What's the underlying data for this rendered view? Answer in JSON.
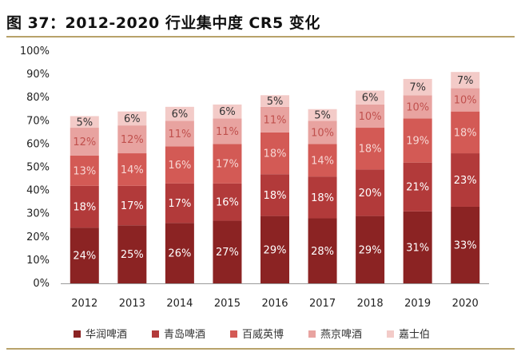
{
  "title": "图 37：2012-2020 行业集中度 CR5 变化",
  "chart_data": {
    "type": "bar",
    "stacked": true,
    "categories": [
      "2012",
      "2013",
      "2014",
      "2015",
      "2016",
      "2017",
      "2018",
      "2019",
      "2020"
    ],
    "y_ticks": [
      "0%",
      "10%",
      "20%",
      "30%",
      "40%",
      "50%",
      "60%",
      "70%",
      "80%",
      "90%",
      "100%"
    ],
    "ylim": [
      0,
      100
    ],
    "grid": false,
    "legend_position": "bottom",
    "series": [
      {
        "name": "华润啤酒",
        "color": "#8b2323",
        "label_color": "#ffffff",
        "values": [
          24,
          25,
          26,
          27,
          29,
          28,
          29,
          31,
          33
        ],
        "labels": [
          "24%",
          "25%",
          "26%",
          "27%",
          "29%",
          "28%",
          "29%",
          "31%",
          "33%"
        ]
      },
      {
        "name": "青岛啤酒",
        "color": "#b23a3a",
        "label_color": "#ffffff",
        "values": [
          18,
          17,
          17,
          16,
          18,
          18,
          20,
          21,
          23
        ],
        "labels": [
          "18%",
          "17%",
          "17%",
          "16%",
          "18%",
          "18%",
          "20%",
          "21%",
          "23%"
        ]
      },
      {
        "name": "百威英博",
        "color": "#d35a55",
        "label_color": "#f7d6d3",
        "values": [
          13,
          14,
          16,
          17,
          18,
          14,
          18,
          19,
          18
        ],
        "labels": [
          "13%",
          "14%",
          "16%",
          "17%",
          "18%",
          "14%",
          "18%",
          "19%",
          "18%"
        ]
      },
      {
        "name": "燕京啤酒",
        "color": "#e8a3a0",
        "label_color": "#c0504d",
        "values": [
          12,
          12,
          11,
          11,
          11,
          10,
          10,
          10,
          10
        ],
        "labels": [
          "12%",
          "12%",
          "11%",
          "11%",
          "11%",
          "10%",
          "10%",
          "10%",
          "10%"
        ]
      },
      {
        "name": "嘉士伯",
        "color": "#f3cbc8",
        "label_color": "#333333",
        "values": [
          5,
          6,
          6,
          6,
          5,
          5,
          6,
          7,
          7
        ],
        "labels": [
          "5%",
          "6%",
          "6%",
          "6%",
          "5%",
          "5%",
          "6%",
          "7%",
          "7%"
        ]
      }
    ],
    "legend_labels": [
      "华润啤酒",
      "青岛啤酒",
      "百威英博",
      "燕京啤酒",
      "嘉士伯"
    ]
  }
}
